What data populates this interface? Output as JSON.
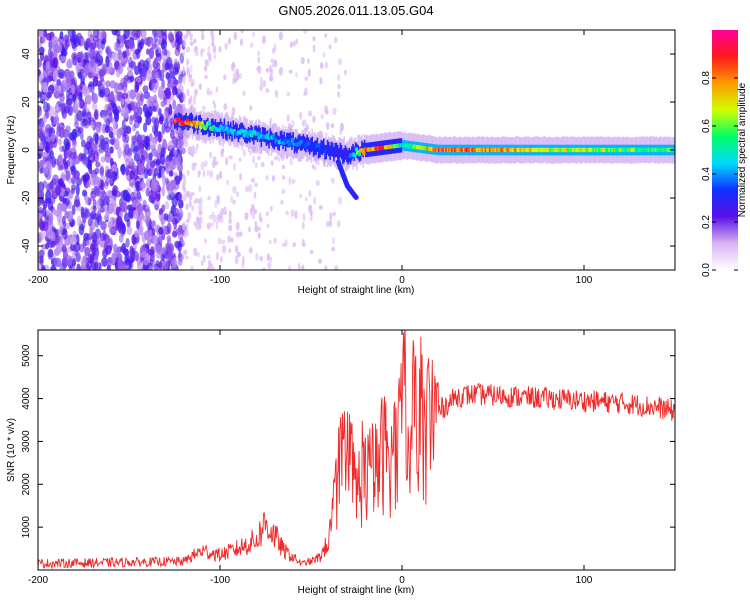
{
  "figure_title": "GN05.2026.011.13.05.G04",
  "colors": {
    "snr_line": "#ee2a2a",
    "colormap": [
      "#ffffff",
      "#d9b3f2",
      "#5a10e8",
      "#1030ff",
      "#00d8ff",
      "#00ff66",
      "#d0ff00",
      "#ff9900",
      "#ff1a1a",
      "#ff0099"
    ]
  },
  "chart_data": [
    {
      "type": "heatmap",
      "title": "GN05.2026.011.13.05.G04",
      "xlabel": "Height of straight line (km)",
      "ylabel": "Frequency (Hz)",
      "xlim": [
        -200,
        150
      ],
      "ylim": [
        -50,
        50
      ],
      "xticks": [
        -200,
        -100,
        0,
        100
      ],
      "yticks": [
        -40,
        -20,
        0,
        20,
        40
      ],
      "colorbar": {
        "label": "Normalized spectral amplitude",
        "range": [
          0,
          1
        ],
        "ticks": [
          0.0,
          0.2,
          0.4,
          0.6,
          0.8
        ]
      },
      "ridge": {
        "description_points_x": [
          -120,
          -100,
          -80,
          -60,
          -40,
          -30,
          -20,
          -10,
          0,
          20,
          60,
          100,
          150
        ],
        "description_points_freq": [
          12,
          9,
          6,
          3,
          0,
          -2,
          0,
          1,
          2,
          0,
          0,
          0,
          0
        ],
        "peak_amplitude_points": [
          1.0,
          0.45,
          0.5,
          0.4,
          0.35,
          0.3,
          0.9,
          0.95,
          0.5,
          0.95,
          0.8,
          0.7,
          0.6
        ]
      },
      "branch": {
        "x": [
          -35,
          -30,
          -25
        ],
        "freq": [
          -5,
          -15,
          -20
        ]
      },
      "noise_region_x": [
        -200,
        -120
      ]
    },
    {
      "type": "line",
      "xlabel": "Height of straight line (km)",
      "ylabel": "SNR (10 * v/v)",
      "xlim": [
        -200,
        150
      ],
      "ylim": [
        0,
        5600
      ],
      "xticks": [
        -200,
        -100,
        0,
        100
      ],
      "yticks": [
        1000,
        2000,
        3000,
        4000,
        5000
      ],
      "series": [
        {
          "name": "SNR",
          "x": [
            -200,
            -150,
            -120,
            -110,
            -100,
            -90,
            -80,
            -75,
            -70,
            -65,
            -60,
            -55,
            -50,
            -45,
            -40,
            -35,
            -30,
            -25,
            -20,
            -15,
            -10,
            -5,
            0,
            2,
            4,
            6,
            10,
            15,
            20,
            30,
            40,
            60,
            80,
            100,
            120,
            140,
            150
          ],
          "y": [
            150,
            180,
            200,
            450,
            350,
            500,
            700,
            1100,
            800,
            450,
            300,
            150,
            200,
            300,
            700,
            2200,
            2300,
            1900,
            2200,
            2200,
            2800,
            2600,
            3200,
            5000,
            1600,
            3500,
            3200,
            3500,
            3700,
            4050,
            4100,
            4050,
            4000,
            3950,
            3900,
            3800,
            3700
          ]
        }
      ]
    }
  ]
}
